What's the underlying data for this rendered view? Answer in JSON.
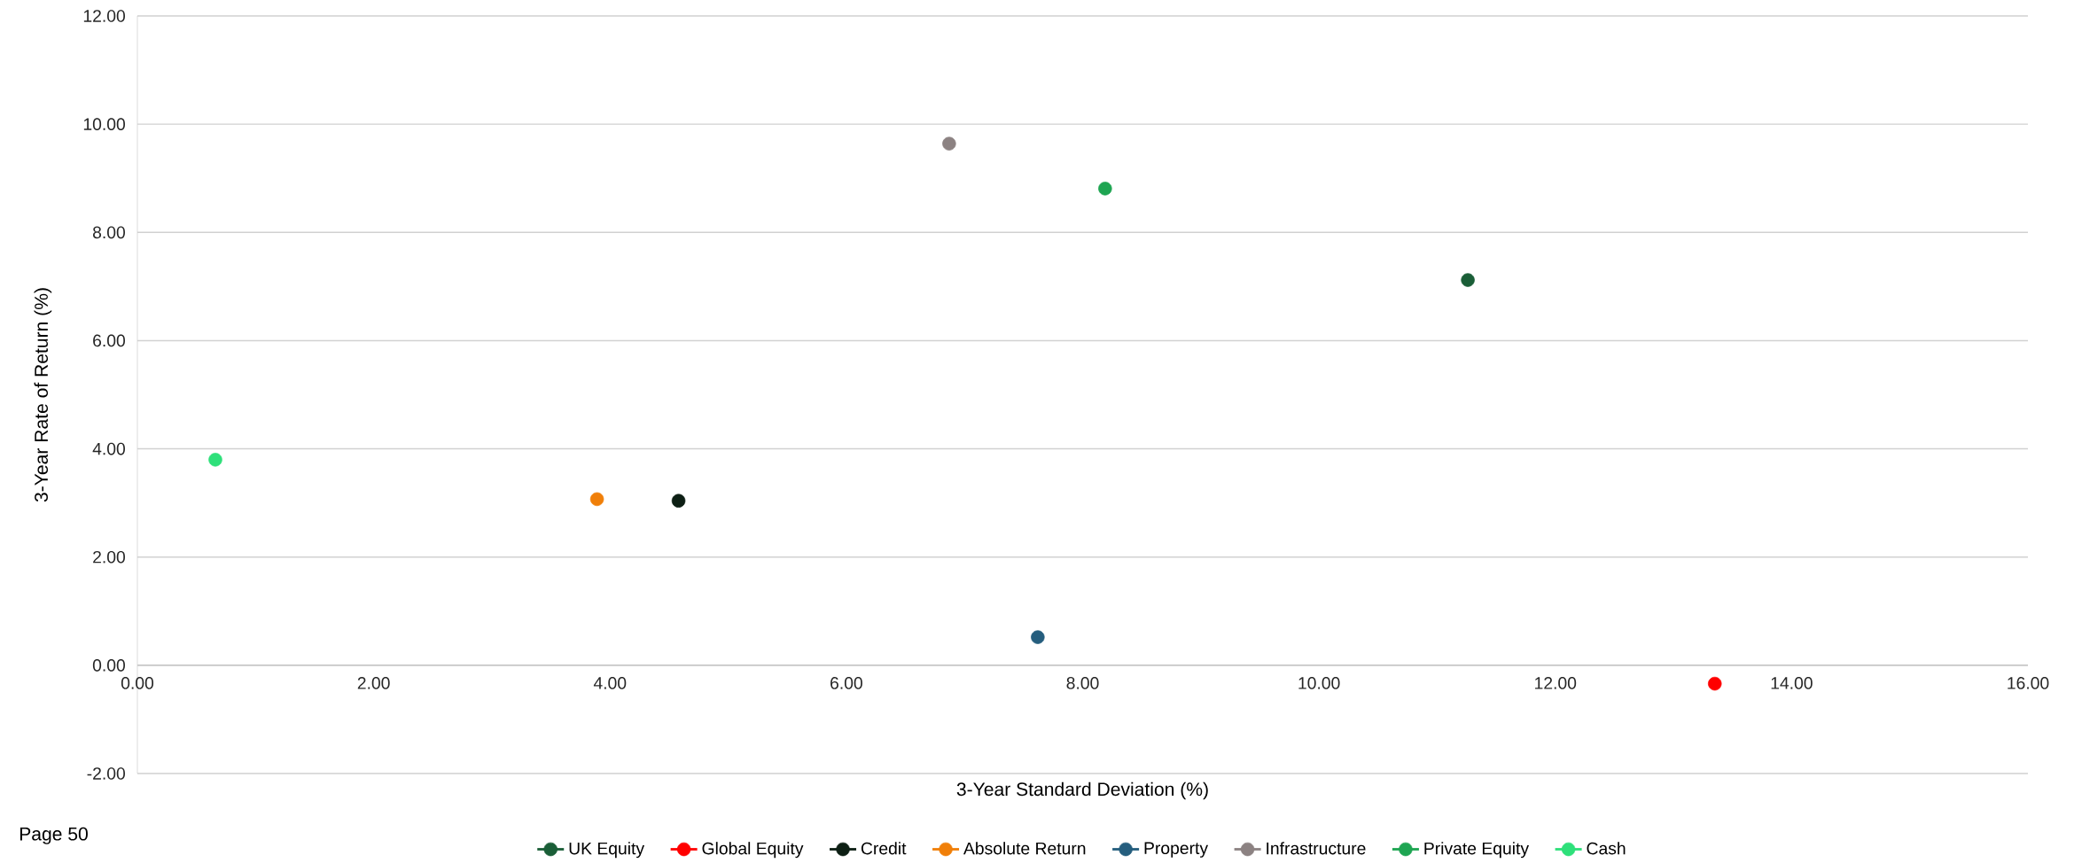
{
  "chart_data": {
    "type": "scatter",
    "xlabel": "3-Year Standard Deviation (%)",
    "ylabel": "3-Year Rate of Return (%)",
    "annotations": [
      "Page 50"
    ],
    "xlim": [
      0,
      16
    ],
    "ylim": [
      -2,
      12
    ],
    "xticks": [
      {
        "value": 0,
        "label": "0.00"
      },
      {
        "value": 2,
        "label": "2.00"
      },
      {
        "value": 4,
        "label": "4.00"
      },
      {
        "value": 6,
        "label": "6.00"
      },
      {
        "value": 8,
        "label": "8.00"
      },
      {
        "value": 10,
        "label": "10.00"
      },
      {
        "value": 12,
        "label": "12.00"
      },
      {
        "value": 14,
        "label": "14.00"
      },
      {
        "value": 16,
        "label": "16.00"
      }
    ],
    "yticks": [
      {
        "value": -2,
        "label": "-2.00"
      },
      {
        "value": 0,
        "label": "0.00"
      },
      {
        "value": 2,
        "label": "2.00"
      },
      {
        "value": 4,
        "label": "4.00"
      },
      {
        "value": 6,
        "label": "6.00"
      },
      {
        "value": 8,
        "label": "8.00"
      },
      {
        "value": 10,
        "label": "10.00"
      },
      {
        "value": 12,
        "label": "12.00"
      }
    ],
    "grid": "y",
    "legend": "bottom",
    "series": [
      {
        "name": "UK Equity",
        "color": "#1a5e37",
        "x": [
          11.26
        ],
        "values": [
          7.12
        ]
      },
      {
        "name": "Global Equity",
        "color": "#ff0000",
        "x": [
          13.35
        ],
        "values": [
          -0.34
        ]
      },
      {
        "name": "Credit",
        "color": "#0d1f14",
        "x": [
          4.58
        ],
        "values": [
          3.04
        ]
      },
      {
        "name": "Absolute Return",
        "color": "#f07f09",
        "x": [
          3.89
        ],
        "values": [
          3.07
        ]
      },
      {
        "name": "Property",
        "color": "#255e7e",
        "x": [
          7.62
        ],
        "values": [
          0.52
        ]
      },
      {
        "name": "Infrastructure",
        "color": "#8c8282",
        "x": [
          6.87
        ],
        "values": [
          9.64
        ]
      },
      {
        "name": "Private Equity",
        "color": "#1ea552",
        "x": [
          8.19
        ],
        "values": [
          8.81
        ]
      },
      {
        "name": "Cash",
        "color": "#2ee07a",
        "x": [
          0.66
        ],
        "values": [
          3.8
        ]
      }
    ]
  }
}
